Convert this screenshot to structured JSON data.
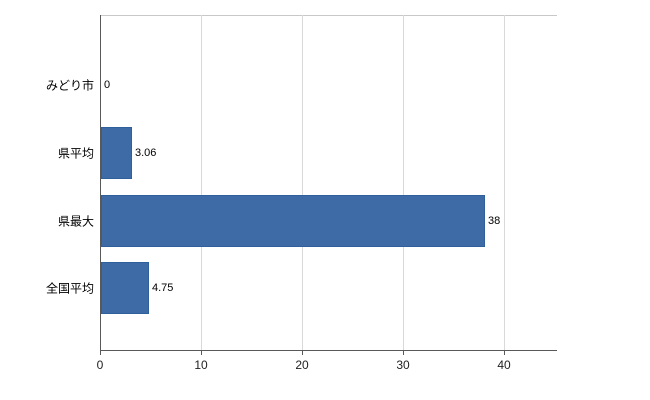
{
  "chart_data": {
    "type": "bar",
    "orientation": "horizontal",
    "title": "",
    "categories": [
      "みどり市",
      "県平均",
      "県最大",
      "全国平均"
    ],
    "values": [
      0,
      3.06,
      38,
      4.75
    ],
    "value_labels": [
      "0",
      "3.06",
      "38",
      "4.75"
    ],
    "xticks": [
      0,
      10,
      20,
      30,
      40
    ],
    "xtick_labels": [
      "0",
      "10",
      "20",
      "30",
      "40"
    ],
    "xlim": [
      0,
      45.2
    ],
    "grid": "vertical",
    "legend": "none",
    "colors": {
      "bar_fill": "#3e6ba6",
      "bar_border": "#30609b",
      "axis": "#595959",
      "top_border": "#c8c8c8",
      "gridline": "#d9d9d9",
      "text": "#000000"
    }
  }
}
